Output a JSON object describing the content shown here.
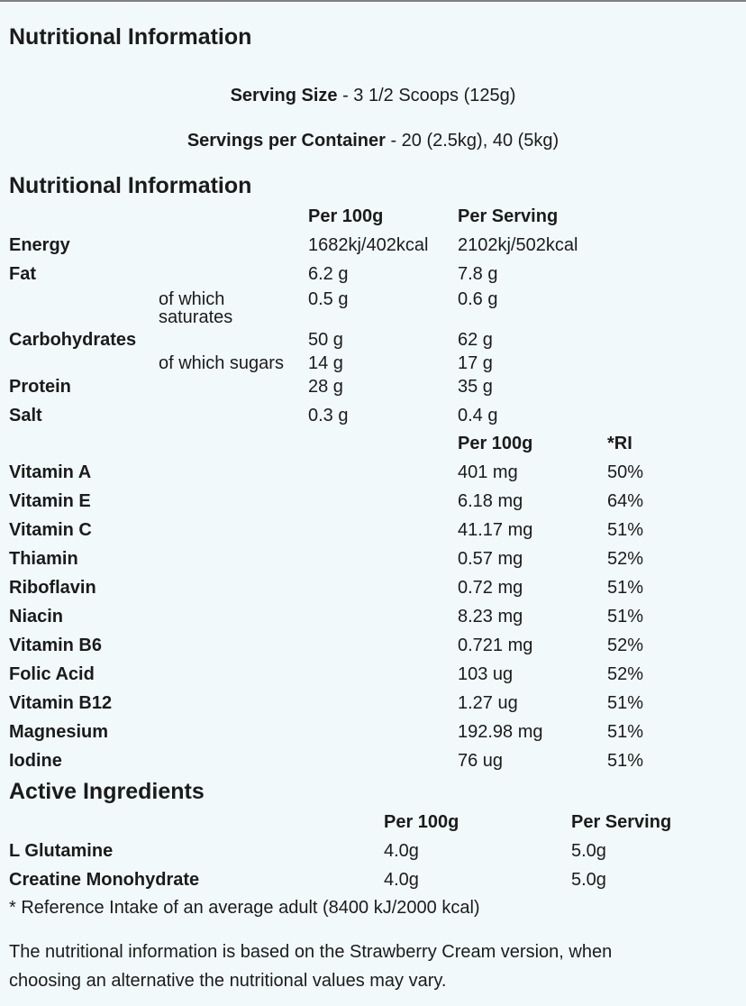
{
  "title": "Nutritional Information",
  "serving_size": {
    "label": "Serving Size",
    "value": "- 3 1/2 Scoops (125g)"
  },
  "servings_per_container": {
    "label": "Servings per Container",
    "value": "- 20 (2.5kg), 40 (5kg)"
  },
  "nutrition": {
    "title": "Nutritional Information",
    "headers": [
      "Per 100g",
      "Per Serving"
    ],
    "rows": [
      {
        "name": "Energy",
        "per100": "1682kj/402kcal",
        "serving": "2102kj/502kcal"
      },
      {
        "name": "Fat",
        "per100": "6.2 g",
        "serving": "7.8 g"
      },
      {
        "sub": "of which saturates",
        "per100": "0.5 g",
        "serving": "0.6 g"
      },
      {
        "name": "Carbohydrates",
        "per100": "50 g",
        "serving": "62 g"
      },
      {
        "sub": "of which sugars",
        "per100": "14 g",
        "serving": "17 g"
      },
      {
        "name": "Protein",
        "per100": "28 g",
        "serving": "35 g"
      },
      {
        "name": "Salt",
        "per100": "0.3 g",
        "serving": "0.4 g"
      }
    ]
  },
  "vitamins": {
    "headers": [
      "Per 100g",
      "*RI"
    ],
    "rows": [
      {
        "name": "Vitamin A",
        "per100": "401 mg",
        "ri": "50%"
      },
      {
        "name": "Vitamin E",
        "per100": "6.18 mg",
        "ri": "64%"
      },
      {
        "name": "Vitamin C",
        "per100": "41.17 mg",
        "ri": "51%"
      },
      {
        "name": "Thiamin",
        "per100": "0.57 mg",
        "ri": "52%"
      },
      {
        "name": "Riboflavin",
        "per100": "0.72 mg",
        "ri": "51%"
      },
      {
        "name": "Niacin",
        "per100": "8.23 mg",
        "ri": "51%"
      },
      {
        "name": "Vitamin B6",
        "per100": "0.721 mg",
        "ri": "52%"
      },
      {
        "name": "Folic Acid",
        "per100": "103 ug",
        "ri": "52%"
      },
      {
        "name": "Vitamin B12",
        "per100": "1.27 ug",
        "ri": "51%"
      },
      {
        "name": "Magnesium",
        "per100": "192.98 mg",
        "ri": "51%"
      },
      {
        "name": "Iodine",
        "per100": "76 ug",
        "ri": "51%"
      }
    ]
  },
  "active": {
    "title": "Active Ingredients",
    "headers": [
      "Per 100g",
      "Per Serving"
    ],
    "rows": [
      {
        "name": "L Glutamine",
        "per100": "4.0g",
        "serving": "5.0g"
      },
      {
        "name": "Creatine Monohydrate",
        "per100": "4.0g",
        "serving": "5.0g"
      }
    ]
  },
  "footnote": "* Reference Intake of an average adult (8400 kJ/2000 kcal)",
  "note_line1": "The nutritional information is based on the Strawberry Cream version, when",
  "note_line2": "choosing an alternative the nutritional values may vary."
}
